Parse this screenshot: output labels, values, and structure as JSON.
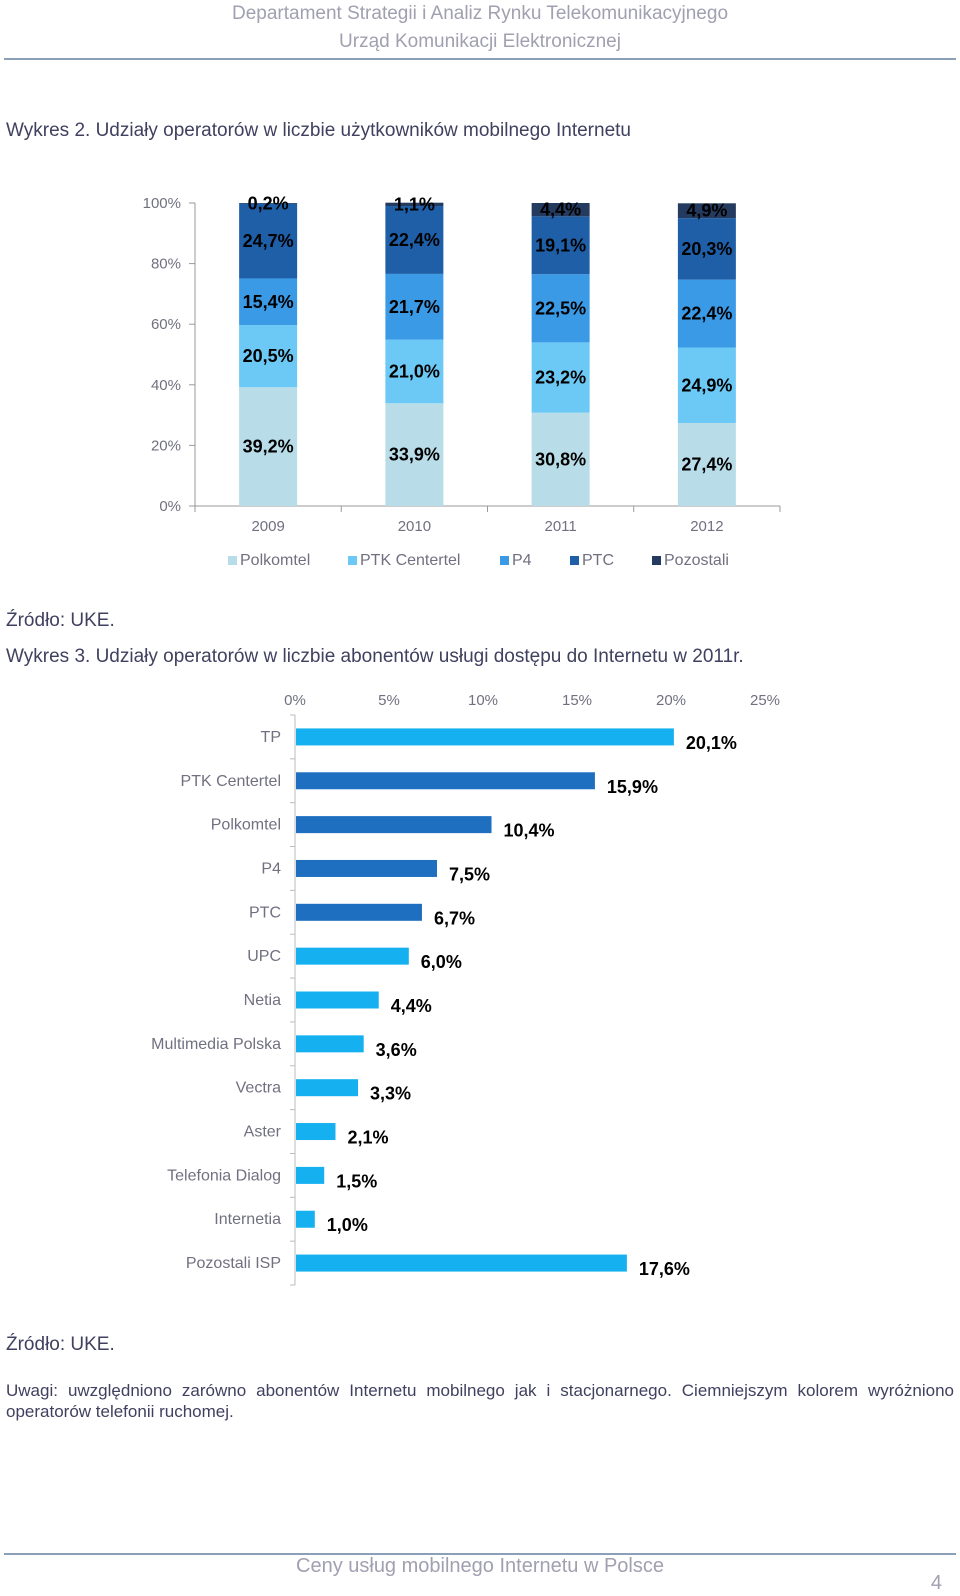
{
  "header": {
    "line1": "Departament Strategii i Analiz Rynku Telekomunikacyjnego",
    "line2": "Urząd Komunikacji Elektronicznej"
  },
  "chart1": {
    "caption": "Wykres 2. Udziały operatorów w liczbie użytkowników mobilnego Internetu",
    "source": "Źródło: UKE."
  },
  "chart2": {
    "caption": "Wykres 3. Udziały operatorów w liczbie abonentów usługi dostępu do Internetu w 2011r.",
    "source": "Źródło: UKE."
  },
  "note": "Uwagi: uwzględniono zarówno abonentów Internetu mobilnego jak i stacjonarnego. Ciemniejszym kolorem wyróżniono operatorów telefonii ruchomej.",
  "footer": {
    "title": "Ceny usług mobilnego Internetu w Polsce",
    "page": "4"
  },
  "chart_data": [
    {
      "type": "bar",
      "stacked": true,
      "orientation": "vertical",
      "categories": [
        "2009",
        "2010",
        "2011",
        "2012"
      ],
      "series": [
        {
          "name": "Polkomtel",
          "color": "#b8dde8",
          "values": [
            39.2,
            33.9,
            30.8,
            27.4
          ],
          "labels": [
            "39,2%",
            "33,9%",
            "30,8%",
            "27,4%"
          ]
        },
        {
          "name": "PTK Centertel",
          "color": "#6cc8f4",
          "values": [
            20.5,
            21.0,
            23.2,
            24.9
          ],
          "labels": [
            "20,5%",
            "21,0%",
            "23,2%",
            "24,9%"
          ]
        },
        {
          "name": "P4",
          "color": "#3a9ae6",
          "values": [
            15.4,
            21.7,
            22.5,
            22.4
          ],
          "labels": [
            "15,4%",
            "21,7%",
            "22,5%",
            "22,4%"
          ]
        },
        {
          "name": "PTC",
          "color": "#1f5fa8",
          "values": [
            24.7,
            22.4,
            19.1,
            20.3
          ],
          "labels": [
            "24,7%",
            "22,4%",
            "19,1%",
            "20,3%"
          ]
        },
        {
          "name": "Pozostali",
          "color": "#243a5e",
          "values": [
            0.2,
            1.1,
            4.4,
            4.9
          ],
          "labels": [
            "0,2%",
            "1,1%",
            "4,4%",
            "4,9%"
          ]
        }
      ],
      "yticks": [
        "0%",
        "20%",
        "40%",
        "60%",
        "80%",
        "100%"
      ],
      "ylim": [
        0,
        100
      ],
      "legend_position": "bottom"
    },
    {
      "type": "bar",
      "orientation": "horizontal",
      "categories": [
        "TP",
        "PTK Centertel",
        "Polkomtel",
        "P4",
        "PTC",
        "UPC",
        "Netia",
        "Multimedia Polska",
        "Vectra",
        "Aster",
        "Telefonia Dialog",
        "Internetia",
        "Pozostali ISP"
      ],
      "values": [
        20.1,
        15.9,
        10.4,
        7.5,
        6.7,
        6.0,
        4.4,
        3.6,
        3.3,
        2.1,
        1.5,
        1.0,
        17.6
      ],
      "labels": [
        "20,1%",
        "15,9%",
        "10,4%",
        "7,5%",
        "6,7%",
        "6,0%",
        "4,4%",
        "3,6%",
        "3,3%",
        "2,1%",
        "1,5%",
        "1,0%",
        "17,6%"
      ],
      "colors": [
        "#14b0f0",
        "#1f6fc0",
        "#1f6fc0",
        "#1f6fc0",
        "#1f6fc0",
        "#14b0f0",
        "#14b0f0",
        "#14b0f0",
        "#14b0f0",
        "#14b0f0",
        "#14b0f0",
        "#14b0f0",
        "#14b0f0"
      ],
      "xticks": [
        "0%",
        "5%",
        "10%",
        "15%",
        "20%",
        "25%"
      ],
      "xlim": [
        0,
        25
      ],
      "xaxis_position": "top"
    }
  ]
}
